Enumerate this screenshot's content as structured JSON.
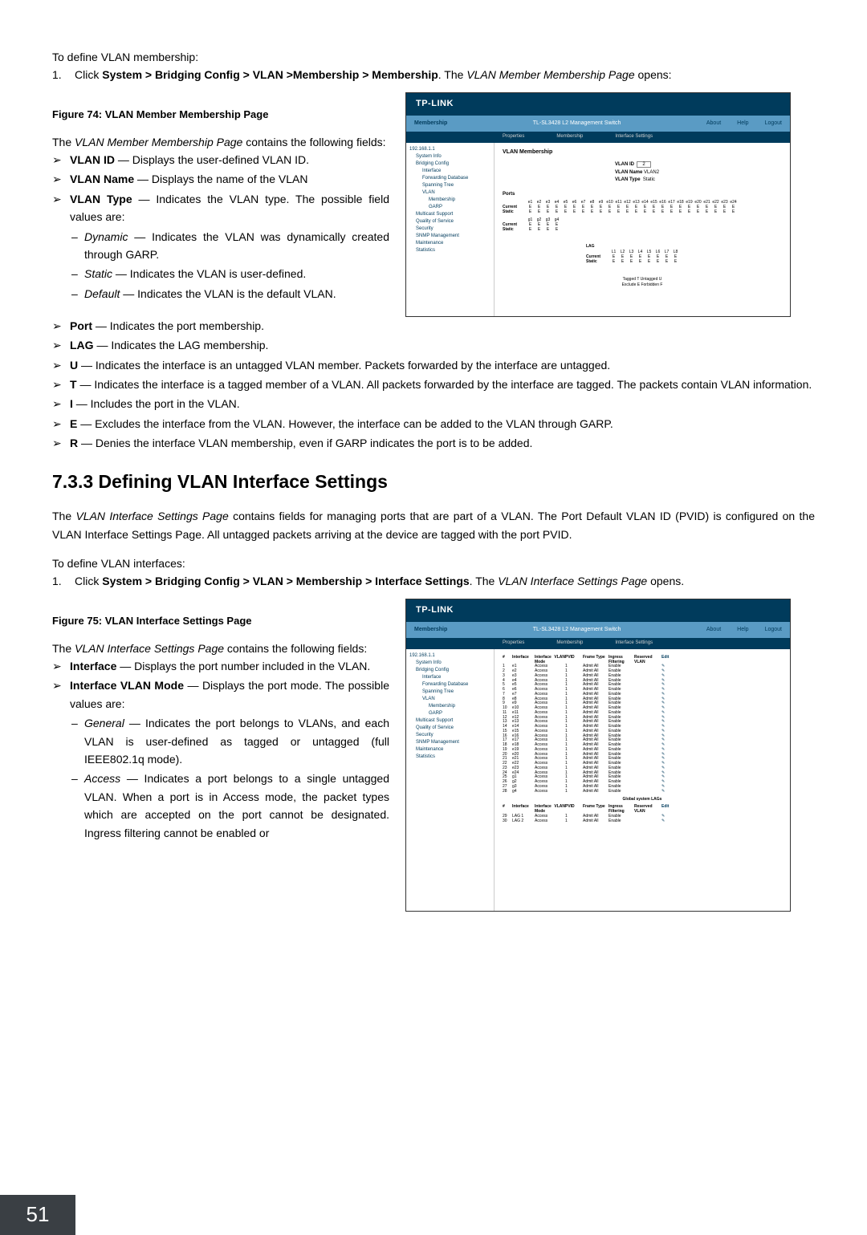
{
  "intro1": "To define VLAN membership:",
  "step1_pre": "1.",
  "step1_a": "Click ",
  "step1_bold": "System > Bridging Config > VLAN >Membership > Membership",
  "step1_b": ". The ",
  "step1_italic": "VLAN Member Membership Page",
  "step1_c": " opens:",
  "fig74": "Figure 74: VLAN Member Membership Page",
  "para1a": "The ",
  "para1i": "VLAN Member Membership Page",
  "para1b": " contains the following fields:",
  "b_vlanid_bold": "VLAN ID",
  "b_vlanid_rest": " — Displays the user-defined VLAN ID.",
  "b_vlanname_bold": "VLAN Name",
  "b_vlanname_rest": " — Displays the name of the VLAN",
  "b_vlantype_bold": "VLAN Type",
  "b_vlantype_rest": " — Indicates the VLAN type. The possible field values are:",
  "sub_dyn_i": "Dynamic",
  "sub_dyn_rest": " — Indicates the VLAN was dynamically created through GARP.",
  "sub_static_i": "Static",
  "sub_static_rest": " — Indicates the VLAN is user-defined.",
  "sub_default_i": "Default",
  "sub_default_rest": " — Indicates the VLAN is the default VLAN.",
  "b_port_bold": "Port",
  "b_port_rest": " — Indicates the port membership.",
  "b_lag_bold": "LAG",
  "b_lag_rest": " — Indicates the LAG membership.",
  "b_u_bold": "U",
  "b_u_rest": " — Indicates the interface is an untagged VLAN member. Packets forwarded by the interface are untagged.",
  "b_t_bold": "T",
  "b_t_rest": " — Indicates the interface is a tagged member of a VLAN. All packets forwarded by the interface are tagged. The packets contain VLAN information.",
  "b_i_bold": "I",
  "b_i_rest": " — Includes the port in the VLAN.",
  "b_e_bold": "E",
  "b_e_rest": " — Excludes the interface from the VLAN. However, the interface can be added to the VLAN through GARP.",
  "b_r_bold": "R",
  "b_r_rest": " — Denies the interface VLAN membership, even if GARP indicates the port is to be added.",
  "section_title": "7.3.3  Defining VLAN Interface Settings",
  "section_p1a": "The ",
  "section_p1i": "VLAN Interface Settings Page",
  "section_p1b": " contains fields for managing ports that are part of a VLAN. The Port Default VLAN ID (PVID) is configured on the VLAN Interface Settings Page. All untagged packets arriving at the device are tagged with the port PVID.",
  "intro2": "To define VLAN interfaces:",
  "step2_pre": "1.",
  "step2_a": "Click ",
  "step2_bold": "System > Bridging Config > VLAN > Membership > Interface Settings",
  "step2_b": ". The ",
  "step2_italic": "VLAN Interface Settings Page",
  "step2_c": " opens.",
  "fig75": "Figure 75: VLAN Interface Settings Page",
  "para2a": "The ",
  "para2i": "VLAN Interface Settings Page",
  "para2b": " contains the following fields:",
  "b_iface_bold": "Interface",
  "b_iface_rest": " — Displays the port number included in the VLAN.",
  "b_ifmode_bold": "Interface VLAN Mode",
  "b_ifmode_rest": " — Displays the port mode. The possible values are:",
  "sub_gen_i": "General",
  "sub_gen_rest": " — Indicates the port belongs to VLANs, and each VLAN is user-defined as tagged or untagged (full IEEE802.1q mode).",
  "sub_acc_i": "Access",
  "sub_acc_rest": " — Indicates a port belongs to a single untagged VLAN. When a port is in Access mode, the packet types which are accepted on the port cannot be designated. Ingress filtering cannot be enabled or",
  "pagenum": "51",
  "scr": {
    "logo": "TP-LINK",
    "subleft": "Membership",
    "subtitle": "TL-SL3428 L2 Management Switch",
    "link_about": "About",
    "link_help": "Help",
    "link_logout": "Logout",
    "tab1": "Properties",
    "tab2": "Membership",
    "tab3": "Interface Settings",
    "nav": [
      "192.168.1.1",
      "System Info",
      "Bridging Config",
      "Interface",
      "Forwarding Database",
      "Spanning Tree",
      "VLAN",
      "Membership",
      "GARP",
      "Multicast Support",
      "Quality of Service",
      "Security",
      "SNMP Management",
      "Maintenance",
      "Statistics"
    ],
    "main_title1": "VLAN Membership",
    "vlanid_l": "VLAN ID",
    "vlanid_v": "2",
    "vlanname_l": "VLAN Name",
    "vlanname_v": "VLAN2",
    "vlantype_l": "VLAN Type",
    "vlantype_v": "Static",
    "ports_l": "Ports",
    "port_hdrs": [
      "e1",
      "e2",
      "e3",
      "e4",
      "e5",
      "e6",
      "e7",
      "e8",
      "e9",
      "e10",
      "e11",
      "e12",
      "e13",
      "e14",
      "e15",
      "e16",
      "e17",
      "e18",
      "e19",
      "e20",
      "e21",
      "e22",
      "e23",
      "e24"
    ],
    "row_current": "Current",
    "row_static": "Static",
    "val_e": "E",
    "port2_hdrs": [
      "g1",
      "g2",
      "g3",
      "g4"
    ],
    "lag_l": "LAG",
    "lag_hdrs": [
      "L1",
      "L2",
      "L3",
      "L4",
      "L5",
      "L6",
      "L7",
      "L8"
    ],
    "legend1": "Tagged  T  Untagged  U",
    "legend2": "Exclude  E  Forbidden  F",
    "iface_hdrs": [
      "#",
      "Interface",
      "Interface VLAN Mode",
      "PVID",
      "Frame Type",
      "Ingress Filtering",
      "Reserved VLAN",
      "Edit"
    ],
    "iface_rows_count": 28,
    "iface_mode": "Access",
    "iface_pvid": "1",
    "iface_frame": "Admit All",
    "iface_ingress": "Enable",
    "edit_icon": "✎",
    "lag_section": "Global system LAGs",
    "lag_rows": [
      "LAG 1",
      "LAG 2"
    ]
  }
}
